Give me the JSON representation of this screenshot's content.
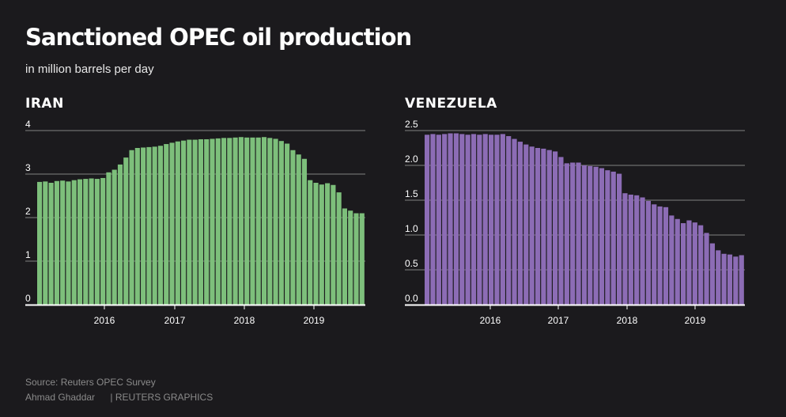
{
  "header": {
    "title": "Sanctioned OPEC oil production",
    "subtitle": "in million barrels per day"
  },
  "footer": {
    "source": "Source: Reuters OPEC Survey",
    "author": "Ahmad Ghaddar",
    "publisher": "| REUTERS GRAPHICS"
  },
  "colors": {
    "background": "#1b1a1d",
    "iran": "#7dbf7b",
    "venezuela": "#8c6cb5",
    "gridline": "#6e6e6e",
    "axis": "#ffffff"
  },
  "chart_data": [
    {
      "type": "bar",
      "title": "IRAN",
      "start": "2015-02",
      "ylim": [
        0,
        4
      ],
      "yticks": [
        "0",
        "1",
        "2",
        "3",
        "4"
      ],
      "xticks": [
        "2016",
        "2017",
        "2018",
        "2019"
      ],
      "values": [
        2.82,
        2.83,
        2.8,
        2.84,
        2.85,
        2.83,
        2.86,
        2.88,
        2.89,
        2.9,
        2.89,
        2.91,
        3.04,
        3.1,
        3.22,
        3.38,
        3.55,
        3.6,
        3.61,
        3.62,
        3.63,
        3.65,
        3.69,
        3.72,
        3.75,
        3.77,
        3.79,
        3.79,
        3.8,
        3.8,
        3.81,
        3.82,
        3.83,
        3.83,
        3.84,
        3.85,
        3.84,
        3.84,
        3.84,
        3.85,
        3.83,
        3.81,
        3.76,
        3.7,
        3.55,
        3.45,
        3.35,
        2.86,
        2.8,
        2.76,
        2.79,
        2.75,
        2.58,
        2.21,
        2.16,
        2.1,
        2.1
      ]
    },
    {
      "type": "bar",
      "title": "VENEZUELA",
      "start": "2015-02",
      "ylim": [
        0,
        2.5
      ],
      "yticks": [
        "0.0",
        "0.5",
        "1.0",
        "1.5",
        "2.0",
        "2.5"
      ],
      "xticks": [
        "2016",
        "2017",
        "2018",
        "2019"
      ],
      "values": [
        2.44,
        2.45,
        2.44,
        2.45,
        2.46,
        2.46,
        2.45,
        2.44,
        2.45,
        2.44,
        2.45,
        2.44,
        2.44,
        2.45,
        2.42,
        2.38,
        2.34,
        2.3,
        2.27,
        2.25,
        2.24,
        2.22,
        2.2,
        2.12,
        2.03,
        2.04,
        2.04,
        2.0,
        1.99,
        1.98,
        1.96,
        1.93,
        1.91,
        1.88,
        1.6,
        1.58,
        1.57,
        1.54,
        1.49,
        1.44,
        1.41,
        1.4,
        1.28,
        1.23,
        1.17,
        1.21,
        1.18,
        1.14,
        1.03,
        0.88,
        0.78,
        0.73,
        0.72,
        0.69,
        0.71
      ]
    }
  ]
}
